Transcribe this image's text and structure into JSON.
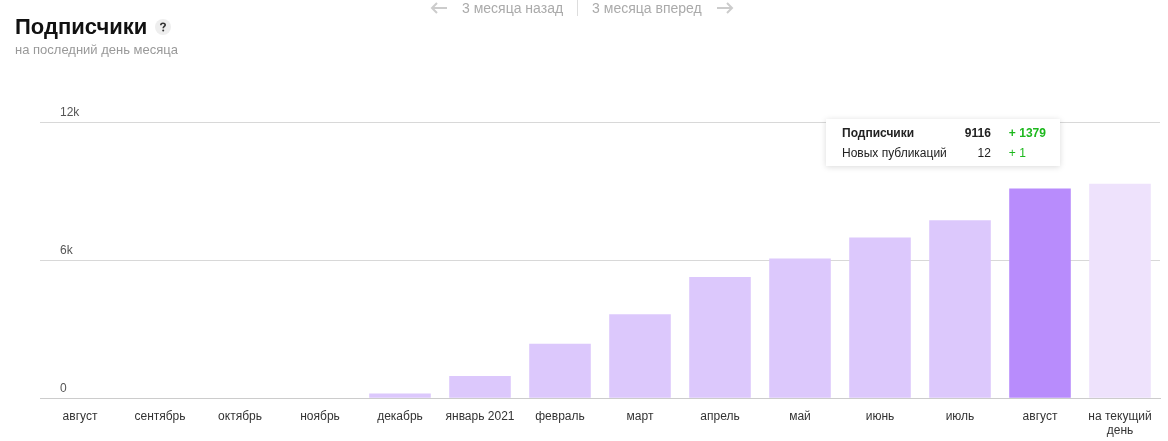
{
  "chart_data": {
    "type": "bar",
    "title": "Подписчики",
    "subtitle": "на последний день месяца",
    "categories": [
      "август",
      "сентябрь",
      "октябрь",
      "ноябрь",
      "декабрь",
      "январь 2021",
      "февраль",
      "март",
      "апрель",
      "май",
      "июнь",
      "июль",
      "август",
      "на текущий день"
    ],
    "values": [
      0,
      0,
      0,
      0,
      200,
      970,
      2370,
      3650,
      5270,
      6070,
      6990,
      7737,
      9116,
      9320
    ],
    "colors": [
      "#dcc8fc",
      "#dcc8fc",
      "#dcc8fc",
      "#dcc8fc",
      "#dcc8fc",
      "#dcc8fc",
      "#dcc8fc",
      "#dcc8fc",
      "#dcc8fc",
      "#dcc8fc",
      "#dcc8fc",
      "#dcc8fc",
      "#b88cfc",
      "#eee2fc"
    ],
    "ylim": [
      0,
      12000
    ],
    "yticks": [
      {
        "value": 0,
        "label": "0"
      },
      {
        "value": 6000,
        "label": "6k"
      },
      {
        "value": 12000,
        "label": "12k"
      }
    ],
    "grid": "y",
    "legend": false,
    "annotations": [
      "3 месяца назад",
      "3 месяца вперед",
      "Подписчики",
      "9116",
      "+ 1379",
      "Новых публикаций",
      "12",
      "+ 1"
    ]
  }
}
